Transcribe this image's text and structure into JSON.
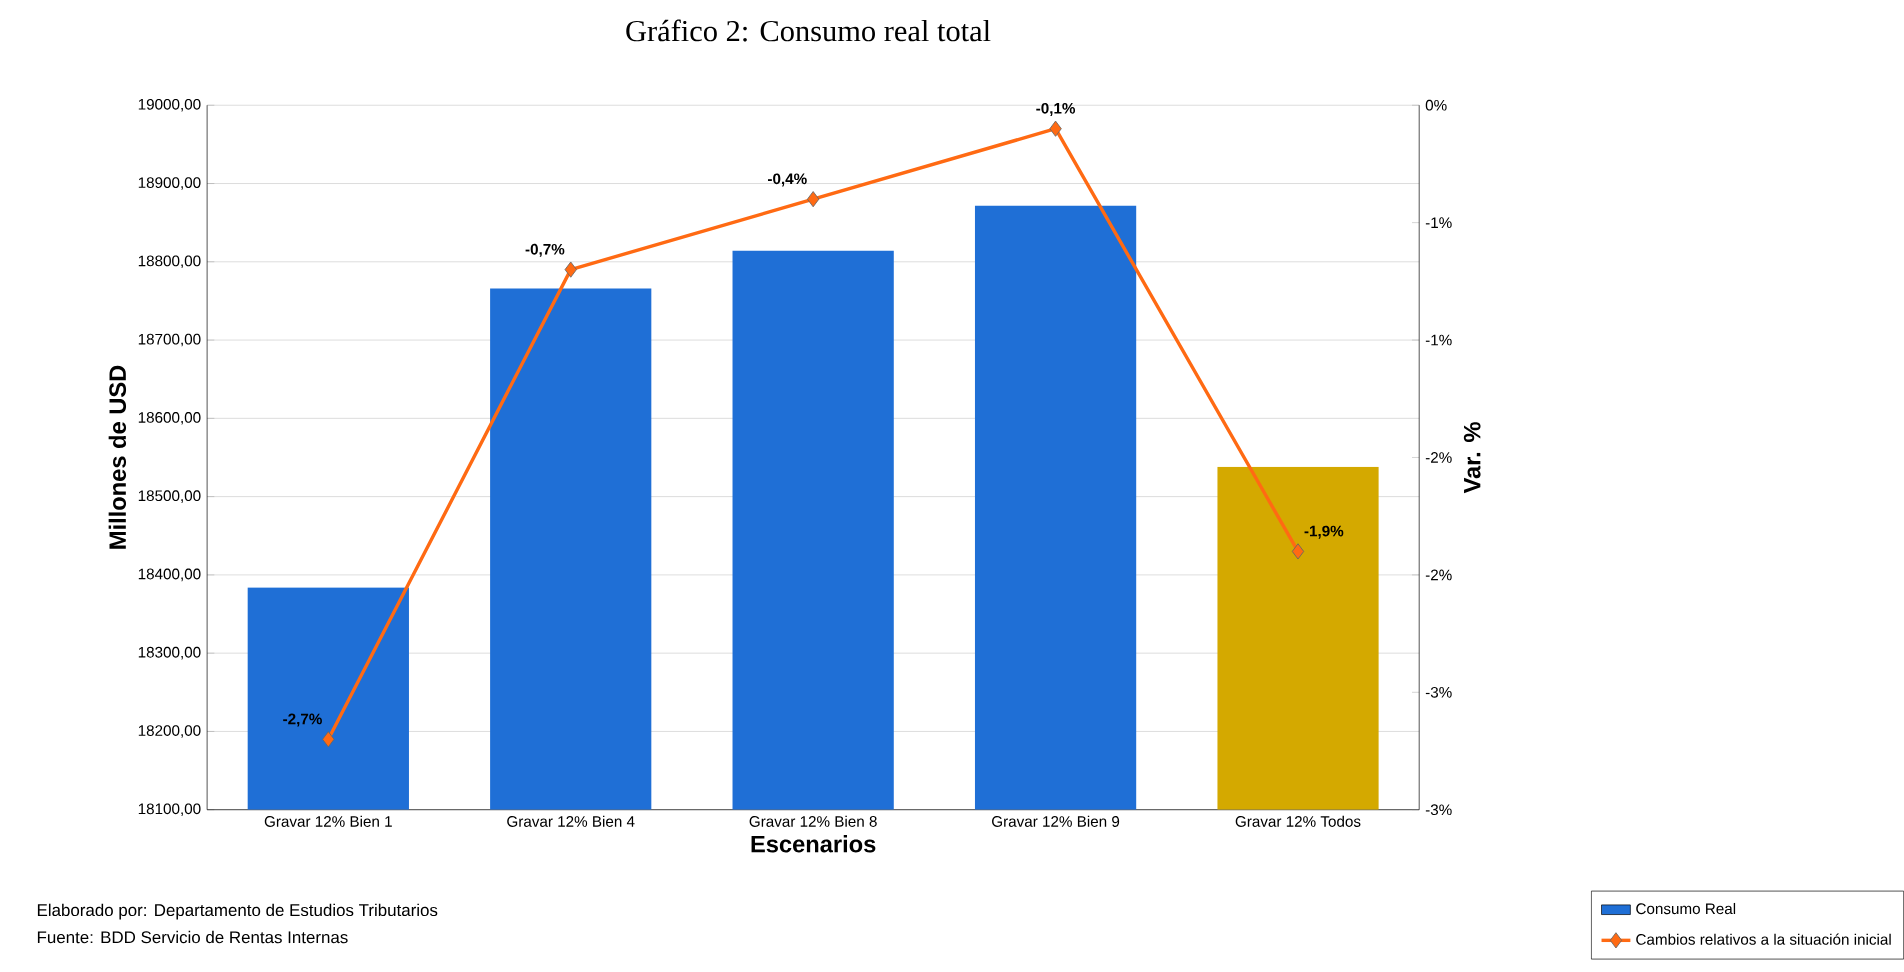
{
  "chart_data": {
    "type": "bar",
    "title": "Gráfico 2: Consumo real total",
    "xlabel": "Escenarios",
    "ylabel": "Millones de USD",
    "y2label": "Var. %",
    "categories": [
      "Gravar 12% Bien 1",
      "Gravar 12% Bien 4",
      "Gravar 12% Bien 8",
      "Gravar 12% Bien 9",
      "Gravar 12% Todos"
    ],
    "series": [
      {
        "name": "Consumo Real",
        "color": "#1f6fd6",
        "colors": [
          "#1f6fd6",
          "#1f6fd6",
          "#1f6fd6",
          "#1f6fd6",
          "#d4a900"
        ],
        "values": [
          18384,
          18766,
          18814,
          18872,
          18538
        ]
      },
      {
        "name": "Cambios relativos a la situación inicial",
        "type": "line",
        "axis": "y2",
        "color": "#ff6a13",
        "marker": "diamond",
        "values": [
          -2.7,
          -0.7,
          -0.4,
          -0.1,
          -1.9
        ],
        "value_labels": [
          "-2,7%",
          "-0,7%",
          "-0,4%",
          "-0,1%",
          "-1,9%"
        ]
      }
    ],
    "ylim": [
      18100,
      19000
    ],
    "yticks": [
      {
        "value": 18100,
        "label": "18100,00"
      },
      {
        "value": 18200,
        "label": "18200,00"
      },
      {
        "value": 18300,
        "label": "18300,00"
      },
      {
        "value": 18400,
        "label": "18400,00"
      },
      {
        "value": 18500,
        "label": "18500,00"
      },
      {
        "value": 18600,
        "label": "18600,00"
      },
      {
        "value": 18700,
        "label": "18700,00"
      },
      {
        "value": 18800,
        "label": "18800,00"
      },
      {
        "value": 18900,
        "label": "18900,00"
      },
      {
        "value": 19000,
        "label": "19000,00"
      }
    ],
    "y2lim": [
      -3,
      0
    ],
    "y2ticks": [
      {
        "value": -3,
        "label": "-3%"
      },
      {
        "value": -2.5,
        "label": "-3%"
      },
      {
        "value": -2,
        "label": "-2%"
      },
      {
        "value": -1.5,
        "label": "-2%"
      },
      {
        "value": -1,
        "label": "-1%"
      },
      {
        "value": -0.5,
        "label": "-1%"
      },
      {
        "value": 0,
        "label": "0%"
      }
    ],
    "grid": "y",
    "legend": "bottom right",
    "annotations": [
      "Elaborado por: Departamento de Estudios Tributarios",
      "Fuente: BDD Servicio de Rentas Internas"
    ]
  }
}
